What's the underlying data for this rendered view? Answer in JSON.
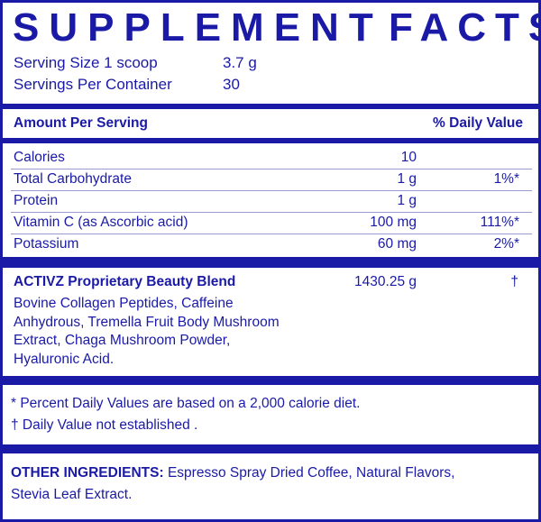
{
  "title_left": "SUPPLEMENT",
  "title_right": "FACTS",
  "serving": {
    "size_label": "Serving Size 1 scoop",
    "size_value": "3.7 g",
    "per_container_label": "Servings Per Container",
    "per_container_value": "30"
  },
  "header": {
    "amount": "Amount Per Serving",
    "daily_value": "% Daily Value"
  },
  "nutrients": [
    {
      "name": "Calories",
      "amount": "10",
      "dv": ""
    },
    {
      "name": "Total Carbohydrate",
      "amount": "1 g",
      "dv": "1%*"
    },
    {
      "name": "Protein",
      "amount": "1 g",
      "dv": ""
    },
    {
      "name": "Vitamin C (as Ascorbic acid)",
      "amount": "100 mg",
      "dv": "111%*"
    },
    {
      "name": "Potassium",
      "amount": "60 mg",
      "dv": "2%*"
    }
  ],
  "blend": {
    "name": "ACTIVZ Proprietary Beauty Blend",
    "amount": "1430.25 g",
    "dv": "†",
    "lines": [
      "Bovine Collagen Peptides, Caffeine",
      "Anhydrous, Tremella Fruit Body Mushroom",
      "Extract, Chaga Mushroom Powder,",
      "Hyaluronic Acid."
    ]
  },
  "footnotes": [
    "* Percent Daily Values are based on a 2,000 calorie diet.",
    "† Daily Value not established ."
  ],
  "other": {
    "label": "OTHER INGREDIENTS:",
    "text": " Espresso Spray Dried Coffee, Natural Flavors,",
    "text2": "Stevia Leaf Extract."
  },
  "colors": {
    "ink": "#1a1aa6"
  }
}
